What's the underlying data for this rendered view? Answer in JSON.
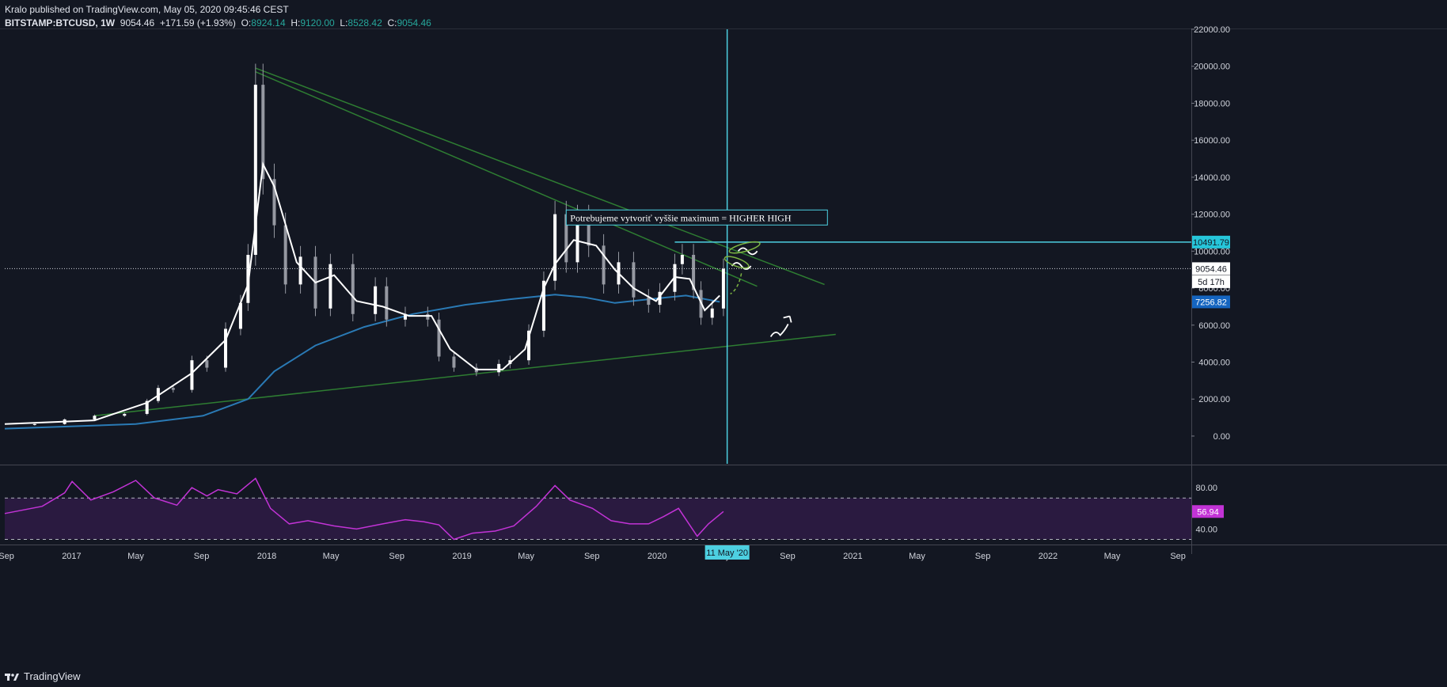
{
  "header": {
    "line1": "Kralo published on TradingView.com, May 05, 2020 09:45:46 CEST",
    "symbol": "BITSTAMP:BTCUSD, 1W",
    "last": "9054.46",
    "change": "+171.59 (+1.93%)",
    "o_label": "O:",
    "o_value": "8924.14",
    "h_label": "H:",
    "h_value": "9120.00",
    "l_label": "L:",
    "l_value": "8528.42",
    "c_label": "C:",
    "c_value": "9054.46"
  },
  "footer": {
    "brand": "TradingView"
  },
  "colors": {
    "background": "#131722",
    "price_line": "#ffffff",
    "ma_fast": "#ffffff",
    "ma_slow": "#2a7ab5",
    "trendline": "#2e7d32",
    "crosshair": "#4dd0e1",
    "rsi": "#c233d6",
    "rsi_band": "#2a1a40"
  },
  "chart_data": {
    "type": "line",
    "symbol": "BITSTAMP:BTCUSD",
    "timeframe": "1W",
    "y_ticks": [
      "22000.00",
      "20000.00",
      "18000.00",
      "16000.00",
      "14000.00",
      "12000.00",
      "10000.00",
      "8000.00",
      "6000.00",
      "4000.00",
      "2000.00",
      "0.00"
    ],
    "ylim": [
      -1500,
      22000
    ],
    "x_ticks": [
      "Sep",
      "2017",
      "May",
      "Sep",
      "2018",
      "May",
      "Sep",
      "2019",
      "May",
      "Sep",
      "2020",
      "May",
      "Sep",
      "2021",
      "May",
      "Sep",
      "2022",
      "May",
      "Sep"
    ],
    "x_tick_dates": [
      "2016-09-01",
      "2017-01-01",
      "2017-05-01",
      "2017-09-01",
      "2018-01-01",
      "2018-05-01",
      "2018-09-01",
      "2019-01-01",
      "2019-05-01",
      "2019-09-01",
      "2020-01-01",
      "2020-05-01",
      "2020-09-01",
      "2021-01-01",
      "2021-05-01",
      "2021-09-01",
      "2022-01-01",
      "2022-05-01",
      "2022-09-01"
    ],
    "price_series": {
      "x": [
        "2016-08-29",
        "2016-10-24",
        "2016-12-19",
        "2017-02-13",
        "2017-04-10",
        "2017-05-22",
        "2017-06-12",
        "2017-07-10",
        "2017-08-14",
        "2017-09-11",
        "2017-10-16",
        "2017-11-13",
        "2017-11-27",
        "2017-12-11",
        "2017-12-25",
        "2018-01-15",
        "2018-02-05",
        "2018-03-05",
        "2018-04-02",
        "2018-04-30",
        "2018-06-11",
        "2018-07-23",
        "2018-08-13",
        "2018-09-17",
        "2018-10-29",
        "2018-11-19",
        "2018-12-17",
        "2019-01-28",
        "2019-03-11",
        "2019-04-01",
        "2019-05-06",
        "2019-06-03",
        "2019-06-24",
        "2019-07-15",
        "2019-08-05",
        "2019-08-26",
        "2019-09-23",
        "2019-10-21",
        "2019-11-18",
        "2019-12-16",
        "2020-01-06",
        "2020-02-03",
        "2020-02-17",
        "2020-03-09",
        "2020-03-23",
        "2020-04-13",
        "2020-05-04"
      ],
      "y": [
        600,
        650,
        900,
        1100,
        1200,
        1900,
        2600,
        2500,
        4100,
        3700,
        5800,
        7200,
        9800,
        19000,
        13900,
        11400,
        8200,
        9700,
        6900,
        9300,
        6600,
        8100,
        6300,
        6600,
        6300,
        4300,
        3700,
        3450,
        3900,
        4100,
        5700,
        8400,
        12000,
        9400,
        11800,
        10300,
        8200,
        9400,
        7500,
        7100,
        7800,
        9300,
        9800,
        7900,
        6400,
        6900,
        9054
      ]
    },
    "ma_fast": {
      "x": [
        "2016-08-29",
        "2017-02-13",
        "2017-05-22",
        "2017-08-14",
        "2017-10-16",
        "2017-11-27",
        "2017-12-25",
        "2018-01-15",
        "2018-02-26",
        "2018-04-02",
        "2018-05-07",
        "2018-06-18",
        "2018-08-06",
        "2018-09-24",
        "2018-11-05",
        "2018-12-10",
        "2019-01-28",
        "2019-03-18",
        "2019-04-29",
        "2019-06-03",
        "2019-06-24",
        "2019-07-29",
        "2019-09-09",
        "2019-10-14",
        "2019-11-18",
        "2019-12-30",
        "2020-02-03",
        "2020-03-02",
        "2020-03-30",
        "2020-04-27"
      ],
      "y": [
        650,
        850,
        1800,
        3400,
        5200,
        8200,
        14700,
        13500,
        9400,
        8300,
        8700,
        7300,
        7000,
        6500,
        6500,
        4700,
        3600,
        3600,
        4700,
        8000,
        9300,
        10600,
        10300,
        9000,
        8000,
        7300,
        8600,
        8500,
        6800,
        7600
      ]
    },
    "ma_slow": {
      "x": [
        "2016-08-29",
        "2017-05-01",
        "2017-09-04",
        "2017-11-27",
        "2018-01-15",
        "2018-04-02",
        "2018-07-02",
        "2018-10-01",
        "2019-01-07",
        "2019-04-01",
        "2019-06-24",
        "2019-08-19",
        "2019-10-14",
        "2019-12-16",
        "2020-02-24",
        "2020-04-27"
      ],
      "y": [
        400,
        650,
        1100,
        2000,
        3500,
        4900,
        5900,
        6600,
        7100,
        7400,
        7650,
        7500,
        7200,
        7400,
        7600,
        7256
      ]
    },
    "trendlines": [
      {
        "name": "upper-1",
        "from": [
          "2017-12-11",
          19900
        ],
        "to": [
          "2020-11-09",
          8200
        ]
      },
      {
        "name": "upper-2",
        "from": [
          "2017-12-11",
          19700
        ],
        "to": [
          "2020-07-06",
          8100
        ]
      },
      {
        "name": "lower",
        "from": [
          "2017-02-13",
          1100
        ],
        "to": [
          "2020-11-30",
          5500
        ]
      }
    ],
    "horizontal_levels": [
      {
        "value": 10491.79,
        "label": "10491.79",
        "from": "2020-02-03"
      },
      {
        "value": 9054.46,
        "label": "9054.46",
        "style": "dotted"
      }
    ],
    "price_labels": [
      "10491.79",
      "9054.46",
      "5d 17h",
      "7256.82"
    ],
    "vertical_marker": {
      "x": "2020-05-11",
      "label": "11 May '20"
    },
    "annotation": "Potrebujeme vytvoriť vyššie maximum = HIGHER HIGH",
    "rsi": {
      "y_ticks": [
        "80.00",
        "40.00"
      ],
      "ylim": [
        25,
        100
      ],
      "band": [
        30,
        70
      ],
      "last_label": "56.94",
      "x": [
        "2016-08-29",
        "2016-11-07",
        "2016-12-19",
        "2017-01-02",
        "2017-02-06",
        "2017-03-20",
        "2017-05-01",
        "2017-06-05",
        "2017-07-17",
        "2017-08-14",
        "2017-09-11",
        "2017-10-02",
        "2017-11-06",
        "2017-12-11",
        "2018-01-08",
        "2018-02-12",
        "2018-03-19",
        "2018-05-07",
        "2018-06-18",
        "2018-08-06",
        "2018-09-17",
        "2018-10-22",
        "2018-11-19",
        "2018-12-17",
        "2019-01-21",
        "2019-03-04",
        "2019-04-08",
        "2019-05-20",
        "2019-06-24",
        "2019-07-22",
        "2019-09-02",
        "2019-10-07",
        "2019-11-11",
        "2019-12-16",
        "2020-01-13",
        "2020-02-10",
        "2020-03-16",
        "2020-04-06",
        "2020-05-04"
      ],
      "y": [
        55,
        62,
        75,
        86,
        68,
        76,
        87,
        70,
        63,
        80,
        72,
        78,
        74,
        89,
        60,
        45,
        48,
        43,
        40,
        45,
        49,
        47,
        44,
        30,
        36,
        38,
        43,
        62,
        82,
        68,
        60,
        48,
        45,
        45,
        52,
        60,
        33,
        45,
        56.94
      ]
    }
  }
}
